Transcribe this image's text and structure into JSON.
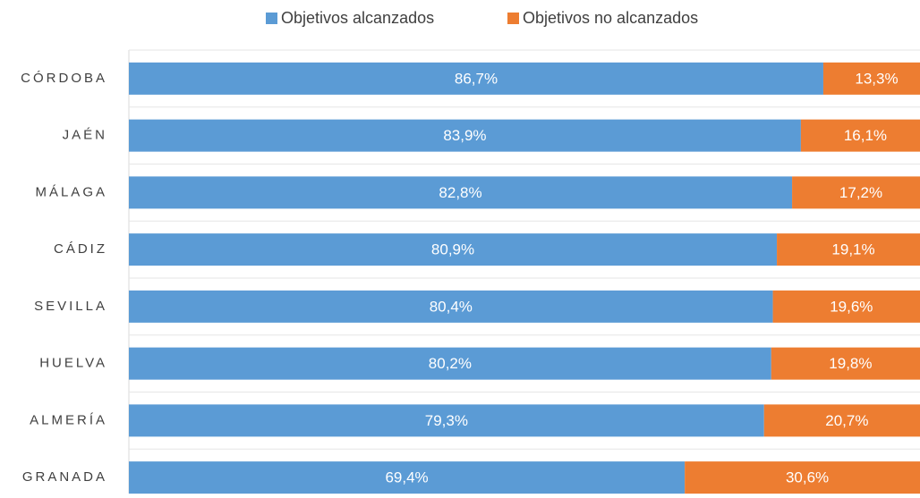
{
  "chart_data": {
    "type": "stacked-bar-horizontal",
    "categories": [
      "CÓRDOBA",
      "JAÉN",
      "MÁLAGA",
      "CÁDIZ",
      "SEVILLA",
      "HUELVA",
      "ALMERÍA",
      "GRANADA"
    ],
    "series": [
      {
        "name": "Objetivos alcanzados",
        "color": "#5b9bd5",
        "values": [
          86.7,
          83.9,
          82.8,
          80.9,
          80.4,
          80.2,
          79.3,
          69.4
        ],
        "value_labels": [
          "86,7%",
          "83,9%",
          "82,8%",
          "80,9%",
          "80,4%",
          "80,2%",
          "79,3%",
          "69,4%"
        ]
      },
      {
        "name": "Objetivos no alcanzados",
        "color": "#ed7d31",
        "values": [
          13.3,
          16.1,
          17.2,
          19.1,
          19.6,
          19.8,
          20.7,
          30.6
        ],
        "value_labels": [
          "13,3%",
          "16,1%",
          "17,2%",
          "19,1%",
          "19,6%",
          "19,8%",
          "20,7%",
          "30,6%"
        ]
      }
    ],
    "xlim": [
      0,
      100
    ],
    "legend": "top"
  }
}
